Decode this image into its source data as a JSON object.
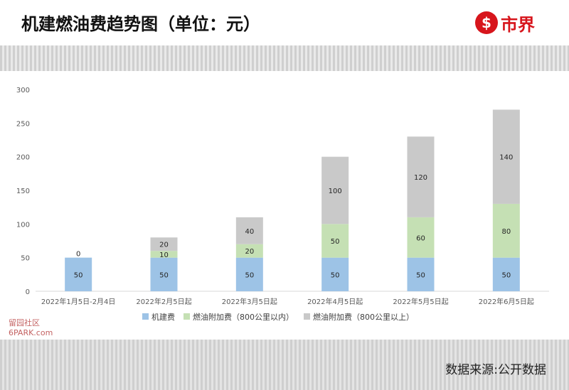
{
  "title": "机建燃油费趋势图（单位：元）",
  "brand": {
    "logo_glyph": "$",
    "name": "市界"
  },
  "footer": {
    "source": "数据来源:公开数据"
  },
  "corner_watermark": [
    "留园社区",
    "6PARK.com"
  ],
  "colors": {
    "airport_fee": "#9dc3e6",
    "fuel_within_800": "#c5e0b4",
    "fuel_over_800": "#c9c9c9",
    "brand_red": "#d7151c"
  },
  "chart_data": {
    "type": "bar",
    "stacked": true,
    "title": "",
    "xlabel": "",
    "ylabel": "",
    "categories": [
      "2022年1月5日-2月4日",
      "2022年2月5日起",
      "2022年3月5日起",
      "2022年4月5日起",
      "2022年5月5日起",
      "2022年6月5日起"
    ],
    "series": [
      {
        "name": "机建费",
        "values": [
          50,
          50,
          50,
          50,
          50,
          50
        ]
      },
      {
        "name": "燃油附加费（800公里以内）",
        "values": [
          0,
          10,
          20,
          50,
          60,
          80
        ]
      },
      {
        "name": "燃油附加费（800公里以上）",
        "values": [
          0,
          20,
          40,
          100,
          120,
          140
        ]
      }
    ],
    "data_labels": [
      [
        "50",
        "50",
        "50",
        "50",
        "50",
        "50"
      ],
      [
        "0",
        "10",
        "20",
        "50",
        "60",
        "80"
      ],
      [
        "",
        "20",
        "40",
        "100",
        "120",
        "140"
      ]
    ],
    "ylim": [
      0,
      300
    ],
    "yticks": [
      0,
      50,
      100,
      150,
      200,
      250,
      300
    ],
    "grid": false,
    "legend": "bottom"
  }
}
